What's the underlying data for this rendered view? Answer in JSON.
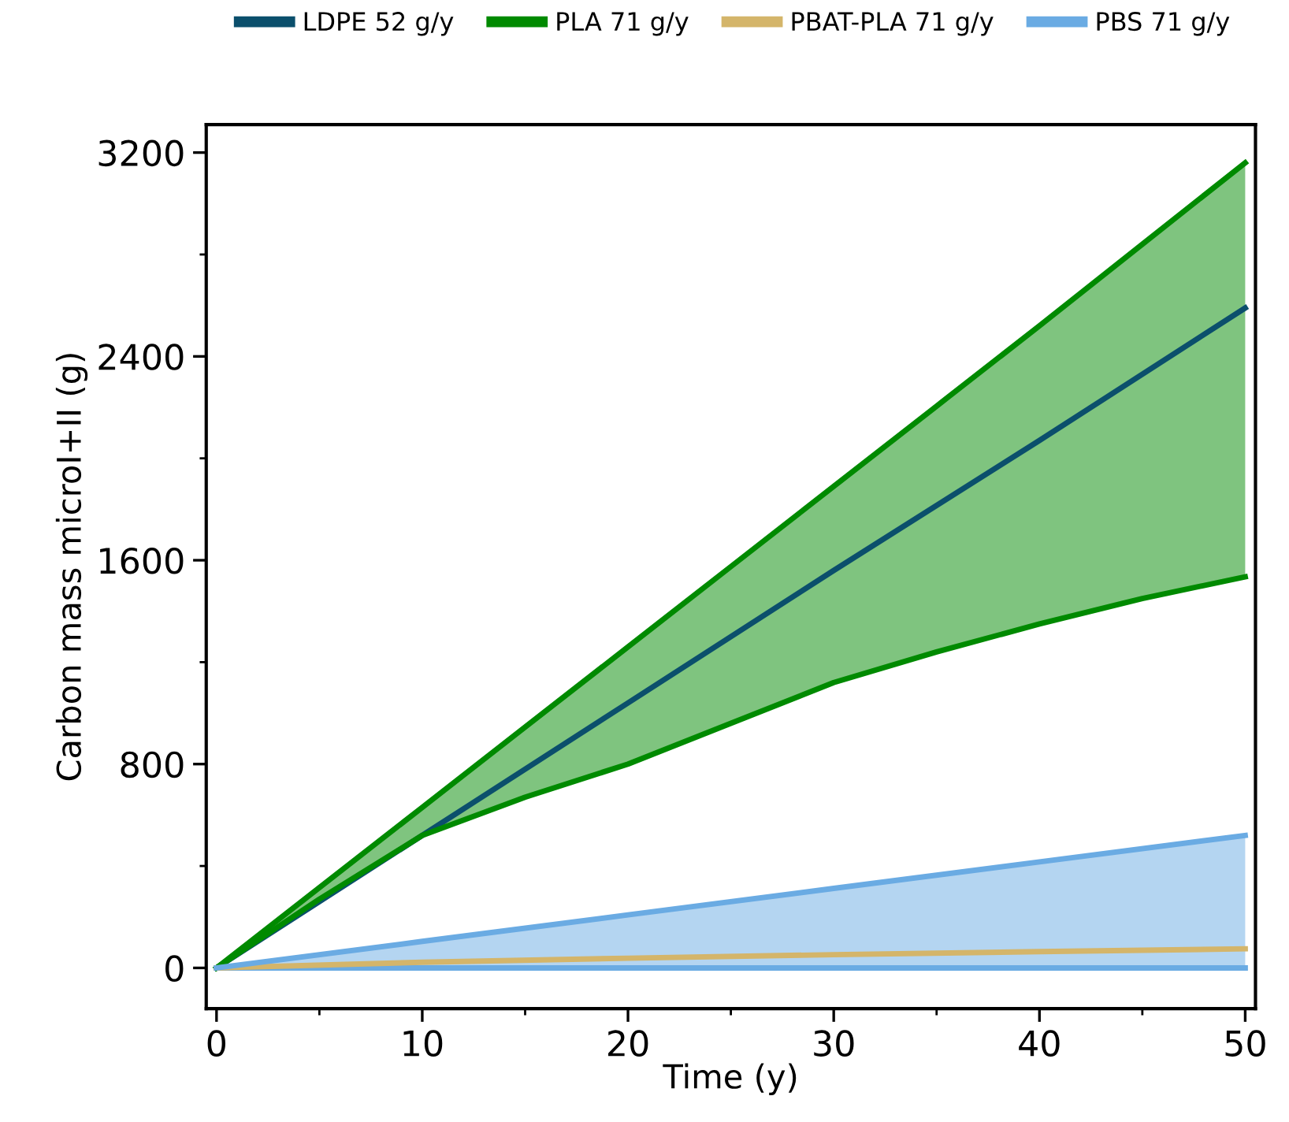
{
  "chart_data": {
    "type": "line",
    "xlabel": "Time (y)",
    "ylabel": "Carbon mass microI+II (g)",
    "x": [
      0,
      10,
      20,
      30,
      40,
      50
    ],
    "series": [
      {
        "name": "LDPE 52 g/y",
        "color": "#0b4f6c",
        "values": [
          0,
          520,
          1040,
          1560,
          2070,
          2590
        ]
      },
      {
        "name": "PLA 71 g/y",
        "color": "#008a00",
        "x": [
          0,
          5,
          10,
          15,
          20,
          25,
          30,
          35,
          40,
          45,
          50
        ],
        "values": [
          0,
          315,
          630,
          945,
          1260,
          1575,
          1890,
          2205,
          2520,
          2840,
          3160
        ],
        "lower": [
          0,
          270,
          520,
          670,
          800,
          960,
          1120,
          1240,
          1350,
          1450,
          1535
        ],
        "upper": [
          0,
          315,
          630,
          945,
          1260,
          1575,
          1890,
          2205,
          2520,
          2840,
          3160
        ]
      },
      {
        "color": "#008a00",
        "x": [
          0,
          5,
          10,
          15,
          20,
          25,
          30,
          35,
          40,
          45,
          50
        ],
        "values": [
          0,
          270,
          520,
          670,
          800,
          960,
          1120,
          1240,
          1350,
          1450,
          1535
        ]
      },
      {
        "color": "#6aabe3",
        "values": [
          0,
          0,
          0,
          0,
          0,
          0
        ]
      },
      {
        "name": "PBAT-PLA 71 g/y",
        "color": "#d4b56a",
        "values": [
          0,
          22,
          38,
          52,
          64,
          75
        ]
      },
      {
        "name": "PBS 71 g/y",
        "color": "#6aabe3",
        "values": [
          0,
          104,
          208,
          312,
          416,
          520
        ],
        "lower": [
          0,
          0,
          0,
          0,
          0,
          0
        ],
        "upper": [
          0,
          104,
          208,
          312,
          416,
          520
        ]
      }
    ],
    "xlim": [
      -0.5,
      50.5
    ],
    "xticks": [
      0,
      10,
      20,
      30,
      40,
      50
    ],
    "ylim": [
      -160,
      3310
    ],
    "yticks": [
      0,
      800,
      1600,
      2400,
      3200
    ],
    "grid": false,
    "legend": "top"
  }
}
